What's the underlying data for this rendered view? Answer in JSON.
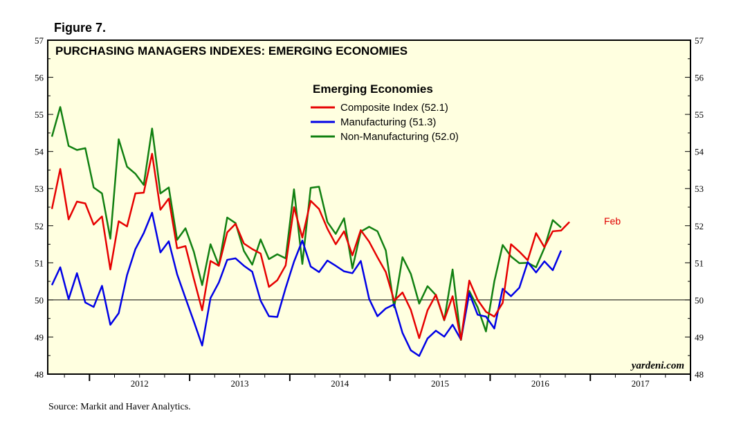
{
  "figure_label": "Figure 7.",
  "source": "Source:  Markit and Haver Analytics.",
  "brand": "yardeni.com",
  "colors": {
    "background": "#ffffe0",
    "composite": "#e60000",
    "manufacturing": "#0000e6",
    "non_manufacturing": "#118011"
  },
  "chart_data": {
    "type": "line",
    "title": "PURCHASING MANAGERS INDEXES: EMERGING ECONOMIES",
    "legend_title": "Emerging Economies",
    "legend_position": "top-center",
    "ylim": [
      48,
      57
    ],
    "yticks": [
      "48",
      "49",
      "50",
      "51",
      "52",
      "53",
      "54",
      "55",
      "56",
      "57"
    ],
    "reference_line": 50,
    "x_labels": [
      "2012",
      "2013",
      "2014",
      "2015",
      "2016",
      "2017"
    ],
    "x_start": "2011-08",
    "x_end": "2017-12",
    "annotation": {
      "text": "Feb",
      "series": "Composite Index"
    },
    "series": [
      {
        "name": "Composite Index",
        "legend": "Composite Index (52.1)",
        "color": "#e60000",
        "values": [
          52.45,
          53.53,
          52.17,
          52.65,
          52.6,
          52.03,
          52.25,
          50.82,
          52.12,
          51.98,
          52.87,
          52.89,
          53.94,
          52.43,
          52.73,
          51.39,
          51.45,
          50.57,
          49.72,
          51.05,
          50.92,
          51.82,
          52.05,
          51.52,
          51.37,
          51.25,
          50.35,
          50.53,
          50.93,
          52.5,
          51.68,
          52.67,
          52.45,
          51.92,
          51.5,
          51.85,
          51.2,
          51.88,
          51.57,
          51.15,
          50.75,
          49.98,
          50.2,
          49.73,
          48.97,
          49.72,
          50.14,
          49.46,
          50.1,
          48.93,
          50.52,
          50.0,
          49.68,
          49.55,
          49.92,
          51.5,
          51.3,
          51.07,
          51.8,
          51.42,
          51.85,
          51.87,
          52.1
        ]
      },
      {
        "name": "Manufacturing",
        "legend": "Manufacturing (51.3)",
        "color": "#0000e6",
        "values": [
          50.4,
          50.88,
          50.02,
          50.72,
          49.93,
          49.81,
          50.38,
          49.33,
          49.64,
          50.67,
          51.37,
          51.8,
          52.35,
          51.28,
          51.58,
          50.69,
          50.05,
          49.42,
          48.77,
          50.05,
          50.47,
          51.08,
          51.12,
          50.92,
          50.76,
          49.98,
          49.56,
          49.54,
          50.32,
          51.03,
          51.6,
          50.9,
          50.75,
          51.06,
          50.92,
          50.77,
          50.72,
          51.05,
          50.03,
          49.56,
          49.77,
          49.88,
          49.11,
          48.64,
          48.49,
          48.96,
          49.17,
          49.01,
          49.33,
          48.93,
          50.18,
          49.6,
          49.55,
          49.23,
          50.3,
          50.1,
          50.33,
          51.02,
          50.74,
          51.04,
          50.8,
          51.33
        ]
      },
      {
        "name": "Non-Manufacturing",
        "legend": "Non-Manufacturing (52.0)",
        "color": "#118011",
        "values": [
          54.4,
          55.2,
          54.15,
          54.04,
          54.09,
          53.03,
          52.87,
          51.65,
          54.33,
          53.59,
          53.4,
          53.1,
          54.62,
          52.87,
          53.03,
          51.62,
          51.93,
          51.3,
          50.4,
          51.5,
          50.93,
          52.22,
          52.07,
          51.32,
          50.95,
          51.63,
          51.1,
          51.23,
          51.12,
          52.98,
          50.97,
          53.02,
          53.05,
          52.1,
          51.78,
          52.2,
          50.85,
          51.84,
          51.97,
          51.85,
          51.33,
          49.8,
          51.15,
          50.7,
          49.9,
          50.37,
          50.13,
          49.45,
          50.82,
          48.92,
          50.24,
          49.8,
          49.15,
          50.5,
          51.48,
          51.17,
          50.99,
          51.0,
          50.88,
          51.4,
          52.15,
          51.95
        ]
      }
    ]
  }
}
